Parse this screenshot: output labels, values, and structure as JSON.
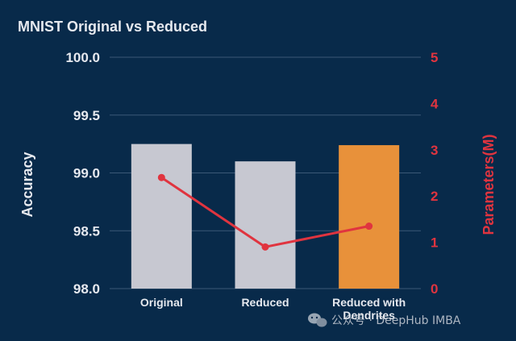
{
  "chart_data": {
    "type": "bar",
    "title": "MNIST Original vs Reduced",
    "categories": [
      "Original",
      "Reduced",
      "Reduced with Dendrites"
    ],
    "bars": {
      "name": "Accuracy",
      "values": [
        99.25,
        99.1,
        99.24
      ],
      "colors": [
        "#c7c8d1",
        "#c7c8d1",
        "#e8913a"
      ]
    },
    "line": {
      "name": "Parameters(M)",
      "values": [
        2.4,
        0.9,
        1.35
      ],
      "color": "#e0343f"
    },
    "ylabel": "Accuracy",
    "ylim": [
      98.0,
      100.0
    ],
    "yticks": [
      "98.0",
      "98.5",
      "99.0",
      "99.5",
      "100.0"
    ],
    "y2label": "Parameters(M)",
    "y2lim": [
      0,
      5
    ],
    "y2ticks": [
      "0",
      "1",
      "2",
      "3",
      "4",
      "5"
    ],
    "grid": true
  },
  "watermark": "公众号 · DeepHub IMBA",
  "colors": {
    "background": "#082a4a",
    "grid": "#3b5877",
    "text": "#e6e9ef",
    "right_axis": "#e0343f"
  }
}
